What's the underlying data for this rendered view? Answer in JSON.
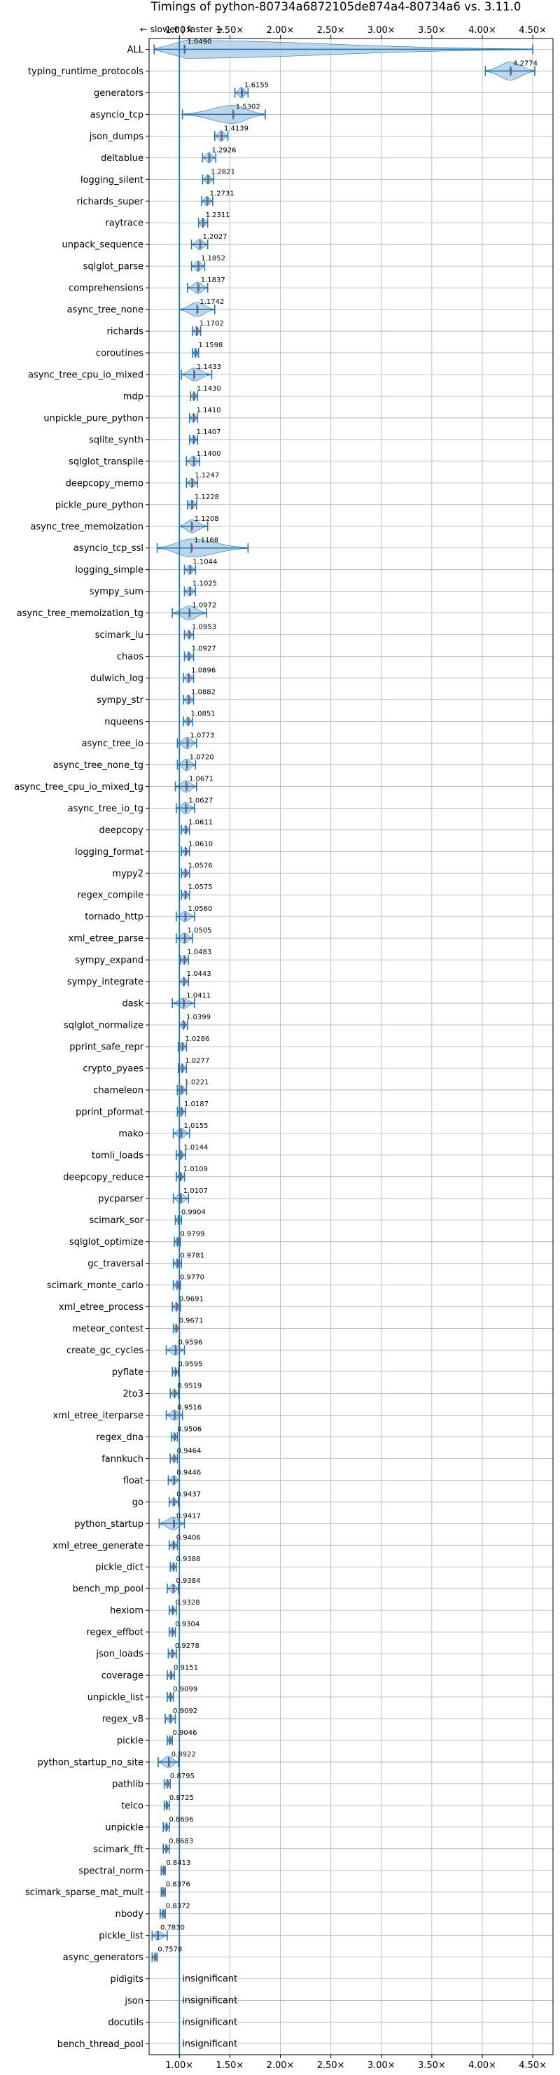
{
  "chart_data": {
    "type": "violin",
    "title": "Timings of python-80734a6872105de874a4-80734a6 vs. 3.11.0",
    "direction_hint": "← slower | faster →",
    "xlim": [
      0.7,
      4.7
    ],
    "xticks": [
      1.0,
      1.5,
      2.0,
      2.5,
      3.0,
      3.5,
      4.0,
      4.5
    ],
    "xtick_labels": [
      "1.00×",
      "1.50×",
      "2.00×",
      "2.50×",
      "3.00×",
      "3.50×",
      "4.00×",
      "4.50×"
    ],
    "grid": true,
    "reference_line": 1.0,
    "insignificant_label": "insignificant",
    "benchmarks": [
      {
        "name": "ALL",
        "value": 1.049,
        "label": "1.0490",
        "min": 0.75,
        "max": 4.5,
        "spread": 0.12
      },
      {
        "name": "typing_runtime_protocols",
        "value": 4.2774,
        "label": "4.2774",
        "min": 4.03,
        "max": 4.52,
        "spread": 0.18
      },
      {
        "name": "generators",
        "value": 1.6155,
        "label": "1.6155",
        "min": 1.55,
        "max": 1.68,
        "spread": 0.06
      },
      {
        "name": "asyncio_tcp",
        "value": 1.5302,
        "label": "1.5302",
        "min": 1.03,
        "max": 1.85,
        "spread": 0.22
      },
      {
        "name": "json_dumps",
        "value": 1.4139,
        "label": "1.4139",
        "min": 1.35,
        "max": 1.48,
        "spread": 0.06
      },
      {
        "name": "deltablue",
        "value": 1.2926,
        "label": "1.2926",
        "min": 1.23,
        "max": 1.36,
        "spread": 0.06
      },
      {
        "name": "logging_silent",
        "value": 1.2821,
        "label": "1.2821",
        "min": 1.23,
        "max": 1.34,
        "spread": 0.05
      },
      {
        "name": "richards_super",
        "value": 1.2731,
        "label": "1.2731",
        "min": 1.22,
        "max": 1.33,
        "spread": 0.05
      },
      {
        "name": "raytrace",
        "value": 1.2311,
        "label": "1.2311",
        "min": 1.19,
        "max": 1.28,
        "spread": 0.05
      },
      {
        "name": "unpack_sequence",
        "value": 1.2027,
        "label": "1.2027",
        "min": 1.12,
        "max": 1.28,
        "spread": 0.06
      },
      {
        "name": "sqlglot_parse",
        "value": 1.1852,
        "label": "1.1852",
        "min": 1.12,
        "max": 1.25,
        "spread": 0.06
      },
      {
        "name": "comprehensions",
        "value": 1.1837,
        "label": "1.1837",
        "min": 1.08,
        "max": 1.28,
        "spread": 0.07
      },
      {
        "name": "async_tree_none",
        "value": 1.1742,
        "label": "1.1742",
        "min": 1.0,
        "max": 1.35,
        "spread": 0.09
      },
      {
        "name": "richards",
        "value": 1.1702,
        "label": "1.1702",
        "min": 1.13,
        "max": 1.21,
        "spread": 0.05
      },
      {
        "name": "coroutines",
        "value": 1.1598,
        "label": "1.1598",
        "min": 1.13,
        "max": 1.19,
        "spread": 0.04
      },
      {
        "name": "async_tree_cpu_io_mixed",
        "value": 1.1433,
        "label": "1.1433",
        "min": 1.02,
        "max": 1.32,
        "spread": 0.08
      },
      {
        "name": "mdp",
        "value": 1.143,
        "label": "1.1430",
        "min": 1.11,
        "max": 1.18,
        "spread": 0.04
      },
      {
        "name": "unpickle_pure_python",
        "value": 1.141,
        "label": "1.1410",
        "min": 1.1,
        "max": 1.18,
        "spread": 0.04
      },
      {
        "name": "sqlite_synth",
        "value": 1.1407,
        "label": "1.1407",
        "min": 1.1,
        "max": 1.18,
        "spread": 0.04
      },
      {
        "name": "sqlglot_transpile",
        "value": 1.14,
        "label": "1.1400",
        "min": 1.07,
        "max": 1.2,
        "spread": 0.06
      },
      {
        "name": "deepcopy_memo",
        "value": 1.1247,
        "label": "1.1247",
        "min": 1.07,
        "max": 1.18,
        "spread": 0.05
      },
      {
        "name": "pickle_pure_python",
        "value": 1.1228,
        "label": "1.1228",
        "min": 1.08,
        "max": 1.17,
        "spread": 0.05
      },
      {
        "name": "async_tree_memoization",
        "value": 1.1208,
        "label": "1.1208",
        "min": 1.0,
        "max": 1.28,
        "spread": 0.08
      },
      {
        "name": "asyncio_tcp_ssl",
        "value": 1.1168,
        "label": "1.1168",
        "min": 0.78,
        "max": 1.68,
        "spread": 0.22
      },
      {
        "name": "logging_simple",
        "value": 1.1044,
        "label": "1.1044",
        "min": 1.05,
        "max": 1.16,
        "spread": 0.05
      },
      {
        "name": "sympy_sum",
        "value": 1.1025,
        "label": "1.1025",
        "min": 1.05,
        "max": 1.16,
        "spread": 0.05
      },
      {
        "name": "async_tree_memoization_tg",
        "value": 1.0972,
        "label": "1.0972",
        "min": 0.93,
        "max": 1.27,
        "spread": 0.09
      },
      {
        "name": "scimark_lu",
        "value": 1.0953,
        "label": "1.0953",
        "min": 1.05,
        "max": 1.14,
        "spread": 0.04
      },
      {
        "name": "chaos",
        "value": 1.0927,
        "label": "1.0927",
        "min": 1.05,
        "max": 1.14,
        "spread": 0.04
      },
      {
        "name": "dulwich_log",
        "value": 1.0896,
        "label": "1.0896",
        "min": 1.04,
        "max": 1.14,
        "spread": 0.05
      },
      {
        "name": "sympy_str",
        "value": 1.0882,
        "label": "1.0882",
        "min": 1.04,
        "max": 1.14,
        "spread": 0.05
      },
      {
        "name": "nqueens",
        "value": 1.0851,
        "label": "1.0851",
        "min": 1.04,
        "max": 1.13,
        "spread": 0.04
      },
      {
        "name": "async_tree_io",
        "value": 1.0773,
        "label": "1.0773",
        "min": 0.98,
        "max": 1.17,
        "spread": 0.07
      },
      {
        "name": "async_tree_none_tg",
        "value": 1.072,
        "label": "1.0720",
        "min": 0.98,
        "max": 1.16,
        "spread": 0.07
      },
      {
        "name": "async_tree_cpu_io_mixed_tg",
        "value": 1.0671,
        "label": "1.0671",
        "min": 0.96,
        "max": 1.17,
        "spread": 0.07
      },
      {
        "name": "async_tree_io_tg",
        "value": 1.0627,
        "label": "1.0627",
        "min": 0.97,
        "max": 1.15,
        "spread": 0.07
      },
      {
        "name": "deepcopy",
        "value": 1.0611,
        "label": "1.0611",
        "min": 1.02,
        "max": 1.1,
        "spread": 0.04
      },
      {
        "name": "logging_format",
        "value": 1.061,
        "label": "1.0610",
        "min": 1.02,
        "max": 1.1,
        "spread": 0.04
      },
      {
        "name": "mypy2",
        "value": 1.0576,
        "label": "1.0576",
        "min": 1.02,
        "max": 1.1,
        "spread": 0.04
      },
      {
        "name": "regex_compile",
        "value": 1.0575,
        "label": "1.0575",
        "min": 1.02,
        "max": 1.1,
        "spread": 0.04
      },
      {
        "name": "tornado_http",
        "value": 1.056,
        "label": "1.0560",
        "min": 0.97,
        "max": 1.15,
        "spread": 0.06
      },
      {
        "name": "xml_etree_parse",
        "value": 1.0505,
        "label": "1.0505",
        "min": 0.97,
        "max": 1.13,
        "spread": 0.06
      },
      {
        "name": "sympy_expand",
        "value": 1.0483,
        "label": "1.0483",
        "min": 1.01,
        "max": 1.09,
        "spread": 0.04
      },
      {
        "name": "sympy_integrate",
        "value": 1.0443,
        "label": "1.0443",
        "min": 1.0,
        "max": 1.09,
        "spread": 0.04
      },
      {
        "name": "dask",
        "value": 1.0411,
        "label": "1.0411",
        "min": 0.93,
        "max": 1.15,
        "spread": 0.06
      },
      {
        "name": "sqlglot_normalize",
        "value": 1.0399,
        "label": "1.0399",
        "min": 1.0,
        "max": 1.08,
        "spread": 0.04
      },
      {
        "name": "pprint_safe_repr",
        "value": 1.0286,
        "label": "1.0286",
        "min": 0.99,
        "max": 1.07,
        "spread": 0.04
      },
      {
        "name": "crypto_pyaes",
        "value": 1.0277,
        "label": "1.0277",
        "min": 0.99,
        "max": 1.07,
        "spread": 0.04
      },
      {
        "name": "chameleon",
        "value": 1.0221,
        "label": "1.0221",
        "min": 0.98,
        "max": 1.07,
        "spread": 0.04
      },
      {
        "name": "pprint_pformat",
        "value": 1.0187,
        "label": "1.0187",
        "min": 0.98,
        "max": 1.06,
        "spread": 0.04
      },
      {
        "name": "mako",
        "value": 1.0155,
        "label": "1.0155",
        "min": 0.94,
        "max": 1.1,
        "spread": 0.06
      },
      {
        "name": "tomli_loads",
        "value": 1.0144,
        "label": "1.0144",
        "min": 0.97,
        "max": 1.06,
        "spread": 0.04
      },
      {
        "name": "deepcopy_reduce",
        "value": 1.0109,
        "label": "1.0109",
        "min": 0.97,
        "max": 1.05,
        "spread": 0.04
      },
      {
        "name": "pycparser",
        "value": 1.0107,
        "label": "1.0107",
        "min": 0.94,
        "max": 1.09,
        "spread": 0.06
      },
      {
        "name": "scimark_sor",
        "value": 0.9904,
        "label": "0.9904",
        "min": 0.96,
        "max": 1.02,
        "spread": 0.03
      },
      {
        "name": "sqlglot_optimize",
        "value": 0.9799,
        "label": "0.9799",
        "min": 0.95,
        "max": 1.01,
        "spread": 0.03
      },
      {
        "name": "gc_traversal",
        "value": 0.9781,
        "label": "0.9781",
        "min": 0.94,
        "max": 1.02,
        "spread": 0.04
      },
      {
        "name": "scimark_monte_carlo",
        "value": 0.977,
        "label": "0.9770",
        "min": 0.94,
        "max": 1.01,
        "spread": 0.03
      },
      {
        "name": "xml_etree_process",
        "value": 0.9691,
        "label": "0.9691",
        "min": 0.93,
        "max": 1.01,
        "spread": 0.04
      },
      {
        "name": "meteor_contest",
        "value": 0.9671,
        "label": "0.9671",
        "min": 0.94,
        "max": 1.0,
        "spread": 0.03
      },
      {
        "name": "create_gc_cycles",
        "value": 0.9596,
        "label": "0.9596",
        "min": 0.87,
        "max": 1.05,
        "spread": 0.06
      },
      {
        "name": "pyflate",
        "value": 0.9595,
        "label": "0.9595",
        "min": 0.93,
        "max": 0.99,
        "spread": 0.03
      },
      {
        "name": "2to3",
        "value": 0.9519,
        "label": "0.9519",
        "min": 0.91,
        "max": 0.99,
        "spread": 0.04
      },
      {
        "name": "xml_etree_iterparse",
        "value": 0.9516,
        "label": "0.9516",
        "min": 0.87,
        "max": 1.03,
        "spread": 0.06
      },
      {
        "name": "regex_dna",
        "value": 0.9506,
        "label": "0.9506",
        "min": 0.92,
        "max": 0.98,
        "spread": 0.03
      },
      {
        "name": "fannkuch",
        "value": 0.9464,
        "label": "0.9464",
        "min": 0.91,
        "max": 0.98,
        "spread": 0.03
      },
      {
        "name": "float",
        "value": 0.9446,
        "label": "0.9446",
        "min": 0.89,
        "max": 1.0,
        "spread": 0.05
      },
      {
        "name": "go",
        "value": 0.9437,
        "label": "0.9437",
        "min": 0.9,
        "max": 0.99,
        "spread": 0.04
      },
      {
        "name": "python_startup",
        "value": 0.9417,
        "label": "0.9417",
        "min": 0.8,
        "max": 1.05,
        "spread": 0.08
      },
      {
        "name": "xml_etree_generate",
        "value": 0.9406,
        "label": "0.9406",
        "min": 0.9,
        "max": 0.98,
        "spread": 0.04
      },
      {
        "name": "pickle_dict",
        "value": 0.9388,
        "label": "0.9388",
        "min": 0.91,
        "max": 0.97,
        "spread": 0.03
      },
      {
        "name": "bench_mp_pool",
        "value": 0.9384,
        "label": "0.9384",
        "min": 0.88,
        "max": 0.99,
        "spread": 0.05
      },
      {
        "name": "hexiom",
        "value": 0.9328,
        "label": "0.9328",
        "min": 0.9,
        "max": 0.97,
        "spread": 0.03
      },
      {
        "name": "regex_effbot",
        "value": 0.9304,
        "label": "0.9304",
        "min": 0.9,
        "max": 0.96,
        "spread": 0.03
      },
      {
        "name": "json_loads",
        "value": 0.9278,
        "label": "0.9278",
        "min": 0.89,
        "max": 0.97,
        "spread": 0.04
      },
      {
        "name": "coverage",
        "value": 0.9151,
        "label": "0.9151",
        "min": 0.88,
        "max": 0.95,
        "spread": 0.03
      },
      {
        "name": "unpickle_list",
        "value": 0.9099,
        "label": "0.9099",
        "min": 0.88,
        "max": 0.94,
        "spread": 0.03
      },
      {
        "name": "regex_v8",
        "value": 0.9092,
        "label": "0.9092",
        "min": 0.86,
        "max": 0.96,
        "spread": 0.04
      },
      {
        "name": "pickle",
        "value": 0.9046,
        "label": "0.9046",
        "min": 0.88,
        "max": 0.93,
        "spread": 0.03
      },
      {
        "name": "python_startup_no_site",
        "value": 0.8922,
        "label": "0.8922",
        "min": 0.79,
        "max": 0.99,
        "spread": 0.07
      },
      {
        "name": "pathlib",
        "value": 0.8795,
        "label": "0.8795",
        "min": 0.85,
        "max": 0.91,
        "spread": 0.03
      },
      {
        "name": "telco",
        "value": 0.8725,
        "label": "0.8725",
        "min": 0.85,
        "max": 0.9,
        "spread": 0.03
      },
      {
        "name": "unpickle",
        "value": 0.8696,
        "label": "0.8696",
        "min": 0.84,
        "max": 0.9,
        "spread": 0.03
      },
      {
        "name": "scimark_fft",
        "value": 0.8683,
        "label": "0.8683",
        "min": 0.84,
        "max": 0.9,
        "spread": 0.03
      },
      {
        "name": "spectral_norm",
        "value": 0.8413,
        "label": "0.8413",
        "min": 0.82,
        "max": 0.86,
        "spread": 0.03
      },
      {
        "name": "scimark_sparse_mat_mult",
        "value": 0.8376,
        "label": "0.8376",
        "min": 0.82,
        "max": 0.86,
        "spread": 0.02
      },
      {
        "name": "nbody",
        "value": 0.8372,
        "label": "0.8372",
        "min": 0.81,
        "max": 0.86,
        "spread": 0.03
      },
      {
        "name": "pickle_list",
        "value": 0.783,
        "label": "0.7830",
        "min": 0.73,
        "max": 0.88,
        "spread": 0.05
      },
      {
        "name": "async_generators",
        "value": 0.7578,
        "label": "0.7578",
        "min": 0.73,
        "max": 0.78,
        "spread": 0.03
      },
      {
        "name": "pidigits",
        "value": null,
        "label": "",
        "insignificant": true
      },
      {
        "name": "json",
        "value": null,
        "label": "",
        "insignificant": true
      },
      {
        "name": "docutils",
        "value": null,
        "label": "",
        "insignificant": true
      },
      {
        "name": "bench_thread_pool",
        "value": null,
        "label": "",
        "insignificant": true
      }
    ]
  },
  "colors": {
    "violin_fill": "#a7c8e3",
    "violin_edge": "#1f77b4",
    "errorbar": "#1f77b4",
    "median": "#d62728",
    "grid": "#b0b0b0",
    "axis": "#000000",
    "reference_line": "#1f77b4"
  }
}
